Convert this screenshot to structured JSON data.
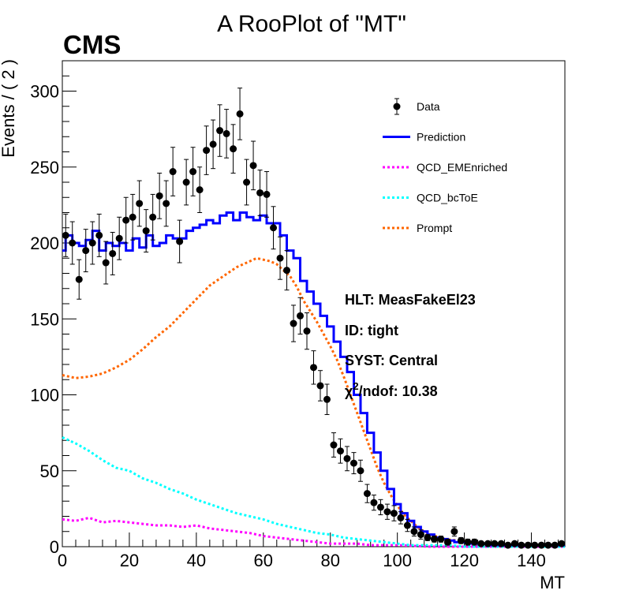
{
  "chart_data": {
    "type": "scatter",
    "title": "A RooPlot of \"MT\"",
    "experiment_label": "CMS",
    "xlabel": "MT",
    "ylabel": "Events / ( 2 )",
    "xlim": [
      0,
      150
    ],
    "ylim": [
      0,
      320
    ],
    "x_ticks": [
      0,
      20,
      40,
      60,
      80,
      100,
      120,
      140
    ],
    "y_ticks": [
      0,
      50,
      100,
      150,
      200,
      250,
      300
    ],
    "grid": false,
    "legend_position": "top-right",
    "legend": [
      {
        "label": "Data",
        "style": "marker",
        "color": "#000000"
      },
      {
        "label": "Prediction",
        "style": "solid",
        "color": "#0000ff"
      },
      {
        "label": "QCD_EMEnriched",
        "style": "dotted",
        "color": "#ff00ff"
      },
      {
        "label": "QCD_bcToE",
        "style": "dotted",
        "color": "#00ffff"
      },
      {
        "label": "Prompt",
        "style": "dotted",
        "color": "#ff6600"
      }
    ],
    "annotations": {
      "hlt": "HLT: MeasFakeEl23",
      "id": "ID: tight",
      "syst": "SYST: Central",
      "chi2_prefix": "χ",
      "chi2_sup": "2",
      "chi2_rest": "/ndof: 10.38"
    },
    "data_points": {
      "x": [
        1,
        3,
        5,
        7,
        9,
        11,
        13,
        15,
        17,
        19,
        21,
        23,
        25,
        27,
        29,
        31,
        33,
        35,
        37,
        39,
        41,
        43,
        45,
        47,
        49,
        51,
        53,
        55,
        57,
        59,
        61,
        63,
        65,
        67,
        69,
        71,
        73,
        75,
        77,
        79,
        81,
        83,
        85,
        87,
        89,
        91,
        93,
        95,
        97,
        99,
        101,
        103,
        105,
        107,
        109,
        111,
        113,
        115,
        117,
        119,
        121,
        123,
        125,
        127,
        129,
        131,
        133,
        135,
        137,
        139,
        141,
        143,
        145,
        147,
        149
      ],
      "y": [
        205,
        200,
        176,
        195,
        200,
        205,
        187,
        193,
        203,
        215,
        217,
        226,
        208,
        217,
        231,
        226,
        247,
        201,
        240,
        247,
        235,
        261,
        265,
        274,
        272,
        262,
        285,
        240,
        251,
        233,
        232,
        210,
        190,
        182,
        147,
        152,
        142,
        118,
        106,
        97,
        67,
        63,
        58,
        55,
        50,
        35,
        29,
        26,
        23,
        22,
        19,
        14,
        10,
        8,
        6,
        5,
        5,
        3,
        10,
        4,
        3,
        3,
        2,
        2,
        2,
        2,
        1,
        2,
        1,
        1,
        1,
        1,
        1,
        1,
        2
      ],
      "err": [
        14,
        14,
        13,
        14,
        14,
        14,
        14,
        14,
        14,
        15,
        15,
        15,
        14,
        15,
        15,
        15,
        16,
        14,
        15,
        16,
        15,
        16,
        16,
        17,
        16,
        16,
        17,
        15,
        16,
        15,
        15,
        14,
        14,
        13,
        12,
        12,
        12,
        11,
        10,
        10,
        8,
        8,
        8,
        7,
        7,
        6,
        5,
        5,
        5,
        5,
        4,
        4,
        3,
        3,
        2,
        2,
        2,
        2,
        3,
        2,
        2,
        2,
        1,
        1,
        1,
        1,
        1,
        1,
        1,
        1,
        1,
        1,
        1,
        1,
        1
      ]
    },
    "series": [
      {
        "name": "Prediction",
        "color": "#0000ff",
        "style": "solid",
        "x": [
          0,
          2,
          4,
          6,
          8,
          10,
          12,
          14,
          16,
          18,
          20,
          22,
          24,
          26,
          28,
          30,
          32,
          34,
          36,
          38,
          40,
          42,
          44,
          46,
          48,
          50,
          52,
          54,
          56,
          58,
          60,
          62,
          64,
          66,
          68,
          70,
          72,
          74,
          76,
          78,
          80,
          82,
          84,
          86,
          88,
          90,
          92,
          94,
          96,
          98,
          100,
          102,
          104,
          106,
          108,
          110,
          112,
          114,
          116,
          118,
          120,
          122,
          124,
          126,
          128,
          130,
          132,
          134,
          136,
          138,
          140,
          142,
          144,
          146,
          148,
          150
        ],
        "y": [
          195,
          205,
          200,
          198,
          202,
          208,
          195,
          200,
          198,
          200,
          195,
          203,
          197,
          205,
          198,
          200,
          205,
          203,
          203,
          208,
          210,
          212,
          215,
          213,
          218,
          220,
          215,
          220,
          217,
          215,
          218,
          213,
          213,
          205,
          195,
          190,
          175,
          168,
          160,
          152,
          145,
          135,
          125,
          115,
          100,
          88,
          75,
          62,
          50,
          38,
          28,
          22,
          17,
          13,
          10,
          8,
          6,
          5,
          4,
          3,
          3,
          2,
          2,
          2,
          1,
          1,
          1,
          1,
          1,
          1,
          1,
          1,
          1,
          1,
          1,
          1
        ]
      },
      {
        "name": "Prompt",
        "color": "#ff6600",
        "style": "dotted",
        "x": [
          0,
          4,
          8,
          12,
          16,
          20,
          24,
          28,
          32,
          36,
          40,
          44,
          48,
          52,
          56,
          58,
          60,
          62,
          64,
          66,
          68,
          70,
          72,
          74,
          76,
          78,
          80,
          82,
          84,
          86,
          88,
          90,
          92,
          94,
          96,
          98,
          100,
          102,
          104,
          106,
          108,
          110,
          114,
          118,
          122,
          126,
          130,
          135,
          140,
          145,
          150
        ],
        "y": [
          113,
          111,
          112,
          114,
          118,
          123,
          130,
          138,
          145,
          154,
          163,
          172,
          178,
          184,
          188,
          190,
          189,
          188,
          186,
          182,
          178,
          171,
          162,
          155,
          148,
          140,
          132,
          123,
          112,
          100,
          88,
          76,
          64,
          52,
          42,
          34,
          27,
          21,
          17,
          13,
          10,
          8,
          5,
          4,
          3,
          2,
          1,
          1,
          1,
          1,
          1
        ]
      },
      {
        "name": "QCD_bcToE",
        "color": "#00ffff",
        "style": "dotted",
        "x": [
          0,
          4,
          8,
          12,
          16,
          20,
          24,
          28,
          32,
          36,
          40,
          44,
          48,
          52,
          56,
          60,
          64,
          68,
          72,
          76,
          80,
          84,
          88,
          92,
          96,
          100,
          104,
          108,
          112,
          116,
          120,
          130,
          140,
          150
        ],
        "y": [
          72,
          68,
          63,
          57,
          52,
          50,
          45,
          42,
          38,
          35,
          31,
          28,
          25,
          22,
          20,
          18,
          15,
          13,
          11,
          9,
          8,
          6,
          5,
          4,
          3,
          2,
          1,
          1,
          1,
          1,
          0,
          0,
          0,
          0
        ]
      },
      {
        "name": "QCD_EMEnriched",
        "color": "#ff00ff",
        "style": "dotted",
        "x": [
          0,
          4,
          8,
          12,
          16,
          20,
          24,
          28,
          32,
          36,
          40,
          44,
          48,
          52,
          56,
          60,
          64,
          68,
          72,
          76,
          80,
          84,
          88,
          92,
          96,
          100,
          110,
          120,
          130,
          140,
          150
        ],
        "y": [
          18,
          17,
          19,
          16,
          17,
          16,
          15,
          14,
          14,
          13,
          14,
          12,
          11,
          10,
          9,
          7,
          6,
          5,
          4,
          3,
          2,
          2,
          2,
          1,
          1,
          1,
          0,
          0,
          0,
          0,
          0
        ]
      }
    ]
  }
}
